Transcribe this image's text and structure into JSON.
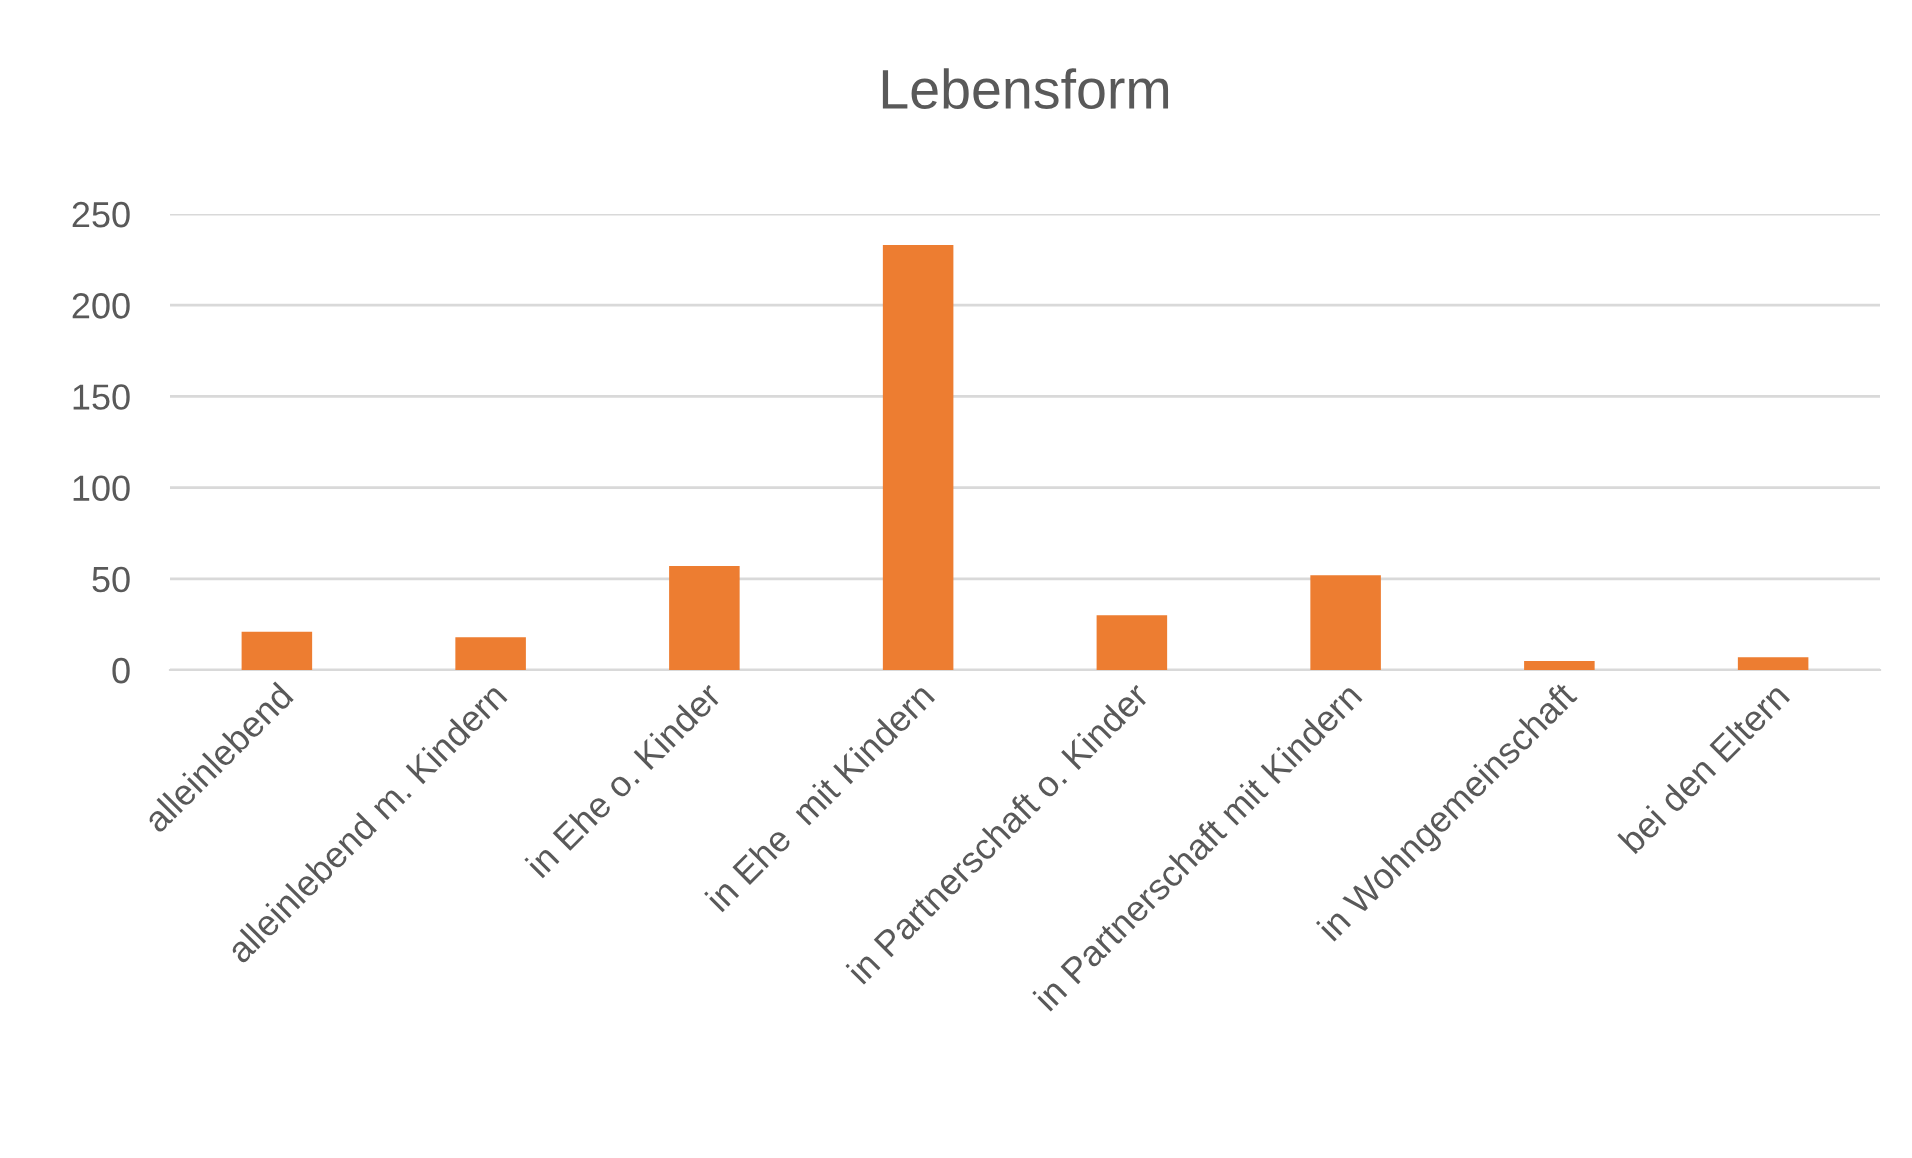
{
  "chart_data": {
    "type": "bar",
    "title": "Lebensform",
    "categories": [
      "alleinlebend",
      "alleinlebend m. Kindern",
      "in Ehe o. Kinder",
      "in Ehe  mit Kindern",
      "in Partnerschaft o. Kinder",
      "in Partnerschaft mit Kindern",
      "in Wohngemeinschaft",
      "bei den Eltern"
    ],
    "values": [
      21,
      18,
      57,
      233,
      30,
      52,
      5,
      7
    ],
    "color": "#ed7d31",
    "ylim": [
      0,
      250
    ],
    "yticks": [
      0,
      50,
      100,
      150,
      200,
      250
    ],
    "grid": "y"
  }
}
